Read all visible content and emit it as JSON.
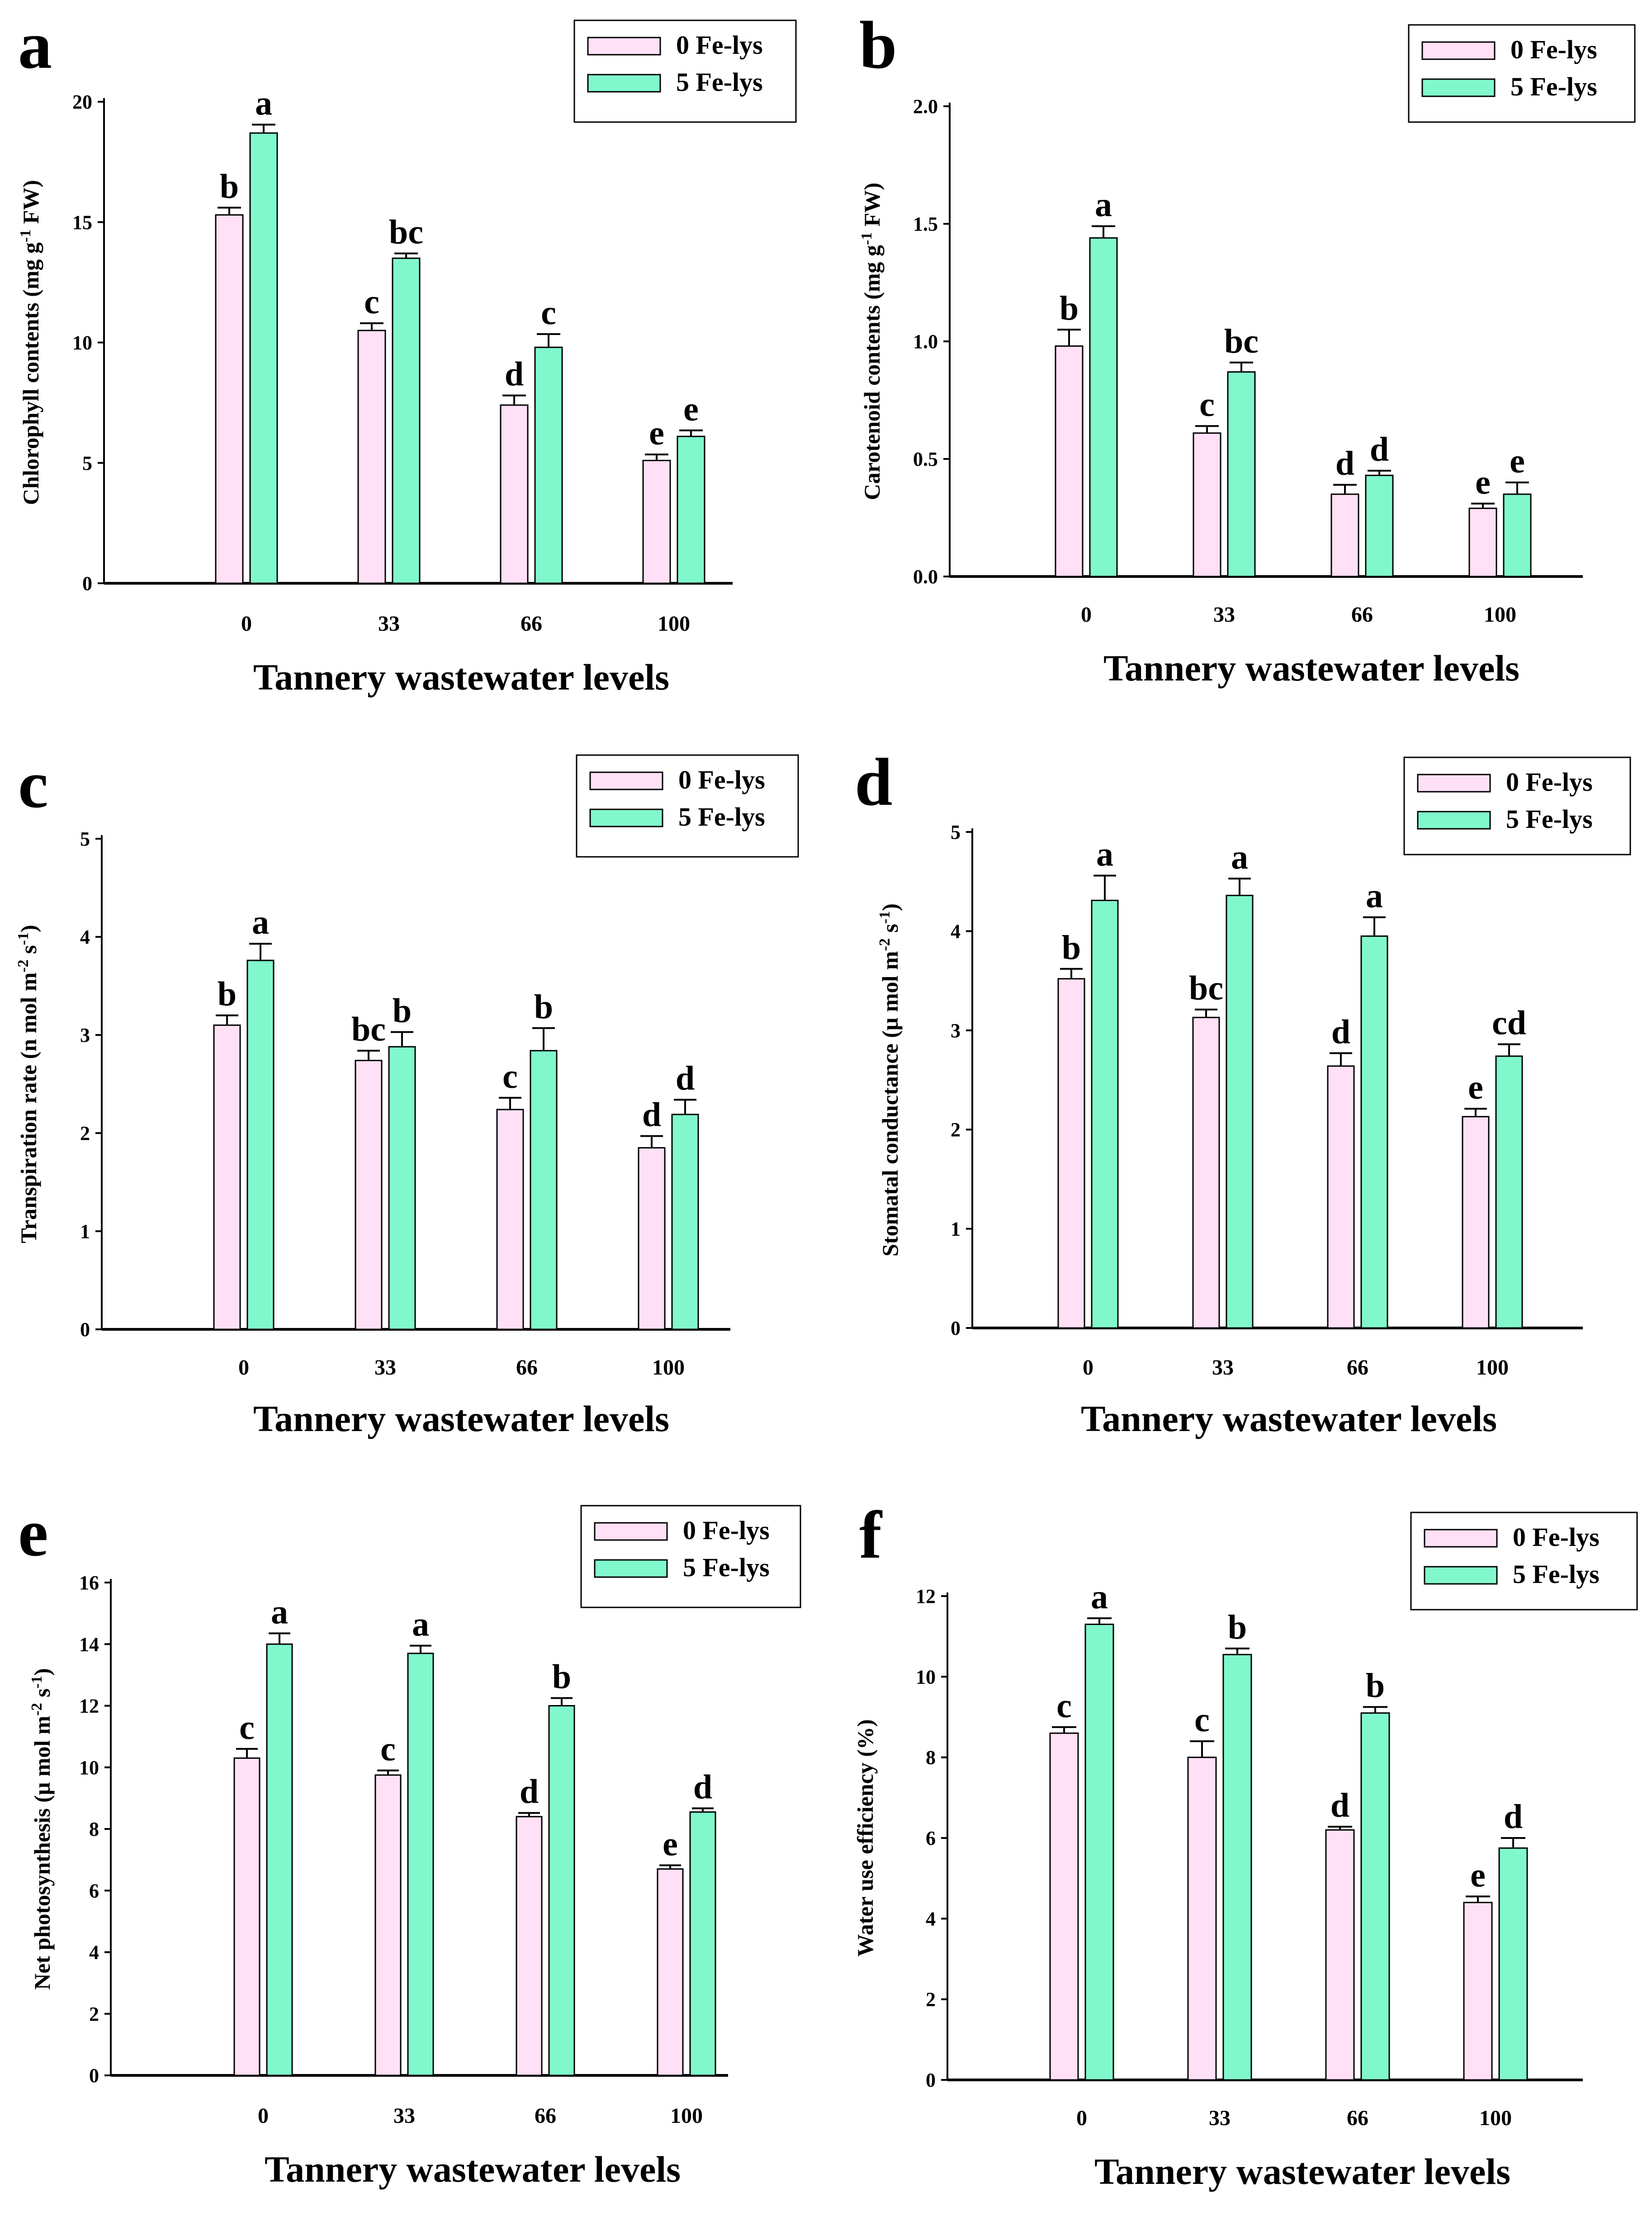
{
  "series_style": [
    {
      "name": "0 Fe-lys",
      "color": "#ffe0f6"
    },
    {
      "name": "5 Fe-lys",
      "color": "#80f8cc"
    }
  ],
  "chart_data": [
    {
      "panel": "a",
      "type": "bar",
      "title": "",
      "xlabel": "Tannery wastewater levels",
      "ylabel": "Chlorophyll contents (mg g",
      "ylabel_sup": "-1",
      "ylabel_tail": " FW)",
      "ylim": [
        0,
        20
      ],
      "yticks": [
        "0",
        "5",
        "10",
        "15",
        "20"
      ],
      "categories": [
        "0",
        "33",
        "66",
        "100"
      ],
      "series": [
        {
          "name": "0 Fe-lys",
          "values": [
            15.3,
            10.5,
            7.4,
            5.1
          ],
          "errors": [
            0.3,
            0.3,
            0.4,
            0.25
          ],
          "letters": [
            "b",
            "c",
            "d",
            "e"
          ]
        },
        {
          "name": "5 Fe-lys",
          "values": [
            18.7,
            13.5,
            9.8,
            6.1
          ],
          "errors": [
            0.35,
            0.2,
            0.55,
            0.25
          ],
          "letters": [
            "a",
            "bc",
            "c",
            "e"
          ]
        }
      ]
    },
    {
      "panel": "b",
      "type": "bar",
      "title": "",
      "xlabel": "Tannery wastewater levels",
      "ylabel": "Carotenoid contents (mg g",
      "ylabel_sup": "-1",
      "ylabel_tail": " FW)",
      "ylim": [
        0,
        2
      ],
      "yticks": [
        "0.0",
        "0.5",
        "1.0",
        "1.5",
        "2.0"
      ],
      "categories": [
        "0",
        "33",
        "66",
        "100"
      ],
      "series": [
        {
          "name": "0 Fe-lys",
          "values": [
            0.98,
            0.61,
            0.35,
            0.29
          ],
          "errors": [
            0.07,
            0.03,
            0.04,
            0.02
          ],
          "letters": [
            "b",
            "c",
            "d",
            "e"
          ]
        },
        {
          "name": "5 Fe-lys",
          "values": [
            1.44,
            0.87,
            0.43,
            0.35
          ],
          "errors": [
            0.05,
            0.04,
            0.02,
            0.05
          ],
          "letters": [
            "a",
            "bc",
            "d",
            "e"
          ]
        }
      ]
    },
    {
      "panel": "c",
      "type": "bar",
      "title": "",
      "xlabel": "Tannery wastewater levels",
      "ylabel": "Transpiration rate (n mol m",
      "ylabel_sup": "-2",
      "ylabel_mid": " s",
      "ylabel_sup2": "-1",
      "ylabel_tail": ")",
      "ylim": [
        0,
        5
      ],
      "yticks": [
        "0",
        "1",
        "2",
        "3",
        "4",
        "5"
      ],
      "categories": [
        "0",
        "33",
        "66",
        "100"
      ],
      "series": [
        {
          "name": "0 Fe-lys",
          "values": [
            3.1,
            2.74,
            2.24,
            1.85
          ],
          "errors": [
            0.1,
            0.1,
            0.12,
            0.12
          ],
          "letters": [
            "b",
            "bc",
            "c",
            "d"
          ]
        },
        {
          "name": "5 Fe-lys",
          "values": [
            3.76,
            2.88,
            2.84,
            2.19
          ],
          "errors": [
            0.17,
            0.15,
            0.23,
            0.15
          ],
          "letters": [
            "a",
            "b",
            "b",
            "d"
          ]
        }
      ]
    },
    {
      "panel": "d",
      "type": "bar",
      "title": "",
      "xlabel": "Tannery wastewater levels",
      "ylabel": "Stomatal conductance (μ mol m",
      "ylabel_sup": "-2",
      "ylabel_mid": " s",
      "ylabel_sup2": "-1",
      "ylabel_tail": ")",
      "ylim": [
        0,
        5
      ],
      "yticks": [
        "0",
        "1",
        "2",
        "3",
        "4",
        "5"
      ],
      "categories": [
        "0",
        "33",
        "66",
        "100"
      ],
      "series": [
        {
          "name": "0 Fe-lys",
          "values": [
            3.52,
            3.13,
            2.64,
            2.13
          ],
          "errors": [
            0.1,
            0.08,
            0.13,
            0.08
          ],
          "letters": [
            "b",
            "bc",
            "d",
            "e"
          ]
        },
        {
          "name": "5 Fe-lys",
          "values": [
            4.31,
            4.36,
            3.95,
            2.74
          ],
          "errors": [
            0.25,
            0.17,
            0.19,
            0.12
          ],
          "letters": [
            "a",
            "a",
            "a",
            "cd"
          ]
        }
      ]
    },
    {
      "panel": "e",
      "type": "bar",
      "title": "",
      "xlabel": "Tannery wastewater levels",
      "ylabel": "Net photosynthesis (μ mol m",
      "ylabel_sup": "-2",
      "ylabel_mid": " s",
      "ylabel_sup2": "-1",
      "ylabel_tail": ")",
      "ylim": [
        0,
        16
      ],
      "yticks": [
        "0",
        "2",
        "4",
        "6",
        "8",
        "10",
        "12",
        "14",
        "16"
      ],
      "categories": [
        "0",
        "33",
        "66",
        "100"
      ],
      "series": [
        {
          "name": "0 Fe-lys",
          "values": [
            10.3,
            9.75,
            8.4,
            6.7
          ],
          "errors": [
            0.3,
            0.15,
            0.12,
            0.12
          ],
          "letters": [
            "c",
            "c",
            "d",
            "e"
          ]
        },
        {
          "name": "5 Fe-lys",
          "values": [
            14.0,
            13.7,
            12.0,
            8.55
          ],
          "errors": [
            0.35,
            0.25,
            0.25,
            0.12
          ],
          "letters": [
            "a",
            "a",
            "b",
            "d"
          ]
        }
      ]
    },
    {
      "panel": "f",
      "type": "bar",
      "title": "",
      "xlabel": "Tannery wastewater levels",
      "ylabel": "Water use efficiency (%)",
      "ylim": [
        0,
        12
      ],
      "yticks": [
        "0",
        "2",
        "4",
        "6",
        "8",
        "10",
        "12"
      ],
      "categories": [
        "0",
        "33",
        "66",
        "100"
      ],
      "series": [
        {
          "name": "0 Fe-lys",
          "values": [
            8.6,
            8.0,
            6.2,
            4.4
          ],
          "errors": [
            0.15,
            0.4,
            0.08,
            0.15
          ],
          "letters": [
            "c",
            "c",
            "d",
            "e"
          ]
        },
        {
          "name": "5 Fe-lys",
          "values": [
            11.3,
            10.55,
            9.1,
            5.75
          ],
          "errors": [
            0.15,
            0.15,
            0.15,
            0.25
          ],
          "letters": [
            "a",
            "b",
            "b",
            "d"
          ]
        }
      ]
    }
  ]
}
